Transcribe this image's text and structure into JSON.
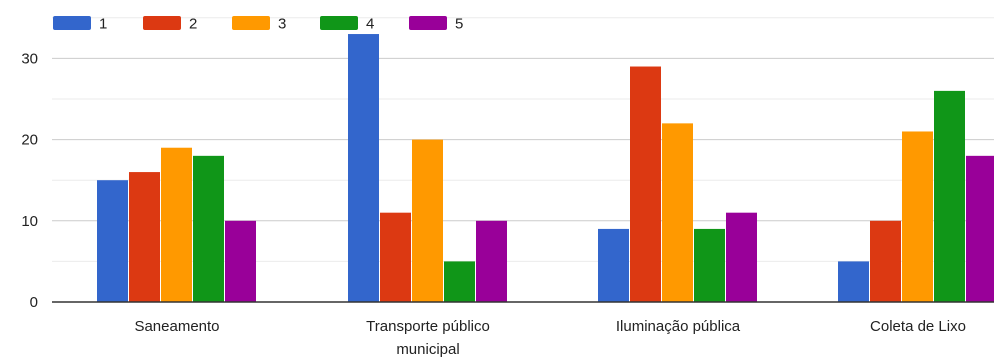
{
  "chart_data": {
    "type": "bar",
    "categories": [
      "Saneamento",
      "Transporte público municipal",
      "Iluminação pública",
      "Coleta de Lixo"
    ],
    "category_label_lines": [
      [
        "Saneamento"
      ],
      [
        "Transporte público",
        "municipal"
      ],
      [
        "Iluminação pública"
      ],
      [
        "Coleta de Lixo"
      ]
    ],
    "series": [
      {
        "name": "1",
        "color": "#3366cc",
        "values": [
          15,
          33,
          9,
          5
        ]
      },
      {
        "name": "2",
        "color": "#dc3912",
        "values": [
          16,
          11,
          29,
          10
        ]
      },
      {
        "name": "3",
        "color": "#ff9900",
        "values": [
          19,
          20,
          22,
          21
        ]
      },
      {
        "name": "4",
        "color": "#109618",
        "values": [
          18,
          5,
          9,
          26
        ]
      },
      {
        "name": "5",
        "color": "#990099",
        "values": [
          10,
          10,
          11,
          18
        ]
      }
    ],
    "yticks": [
      0,
      10,
      20,
      30
    ],
    "ylim": [
      0,
      35
    ],
    "grid": true,
    "legend_position": "top-left",
    "title": "",
    "xlabel": "",
    "ylabel": ""
  }
}
